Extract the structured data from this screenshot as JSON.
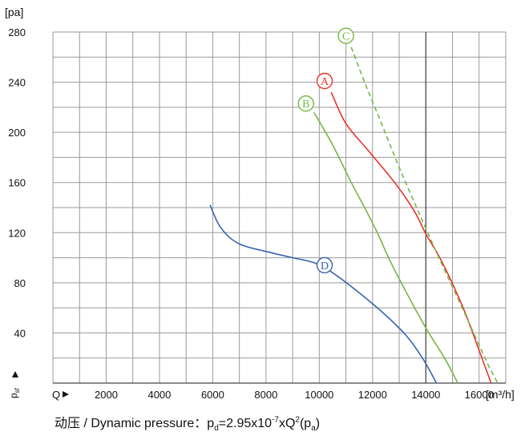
{
  "chart_data": {
    "type": "line",
    "y_unit": "[pa]",
    "x_unit": "[m³/h]",
    "x_axis_symbol": "Q",
    "y_axis_symbol": "p",
    "y_axis_symbol_sub": "sf",
    "xlim": [
      0,
      17000
    ],
    "ylim": [
      0,
      280
    ],
    "x_ticks": [
      2000,
      4000,
      6000,
      8000,
      10000,
      12000,
      14000,
      16000
    ],
    "y_ticks": [
      40,
      80,
      120,
      160,
      200,
      240,
      280
    ],
    "x_tick_labels": [
      "2000",
      "4000",
      "6000",
      "8000",
      "10000",
      "12000",
      "14000",
      "16000"
    ],
    "y_tick_labels": [
      "40",
      "80",
      "120",
      "160",
      "200",
      "240",
      "280"
    ],
    "grid": true,
    "series": [
      {
        "name": "A",
        "color": "#e8332a",
        "dash": false,
        "label_at": [
          10200,
          241
        ],
        "points": [
          [
            10450,
            232
          ],
          [
            11000,
            207
          ],
          [
            11900,
            184
          ],
          [
            12900,
            158
          ],
          [
            13600,
            136
          ],
          [
            14000,
            119
          ],
          [
            14600,
            97
          ],
          [
            15400,
            60
          ],
          [
            16000,
            26
          ],
          [
            16450,
            0
          ]
        ]
      },
      {
        "name": "B",
        "color": "#74b844",
        "dash": false,
        "label_at": [
          9500,
          223
        ],
        "points": [
          [
            9800,
            216
          ],
          [
            10500,
            190
          ],
          [
            11200,
            160
          ],
          [
            11700,
            140
          ],
          [
            12200,
            119
          ],
          [
            12600,
            100
          ],
          [
            13100,
            79
          ],
          [
            14000,
            44
          ],
          [
            14700,
            20
          ],
          [
            15200,
            0
          ]
        ]
      },
      {
        "name": "C",
        "color": "#74b844",
        "dash": true,
        "label_at": [
          11000,
          277
        ],
        "points": [
          [
            11200,
            268
          ],
          [
            11700,
            240
          ],
          [
            12300,
            209
          ],
          [
            13000,
            172
          ],
          [
            13800,
            133
          ],
          [
            14600,
            95
          ],
          [
            15300,
            63
          ],
          [
            15900,
            35
          ],
          [
            16350,
            14
          ],
          [
            16700,
            0
          ]
        ]
      },
      {
        "name": "D",
        "color": "#3a64b0",
        "dash": false,
        "label_at": [
          10200,
          94
        ],
        "points": [
          [
            5900,
            142
          ],
          [
            6300,
            124
          ],
          [
            7000,
            111
          ],
          [
            8200,
            104
          ],
          [
            9000,
            100
          ],
          [
            9800,
            96
          ],
          [
            10500,
            88
          ],
          [
            11500,
            72
          ],
          [
            12500,
            54
          ],
          [
            13300,
            37
          ],
          [
            13900,
            19
          ],
          [
            14400,
            0
          ]
        ]
      }
    ]
  },
  "caption": {
    "prefix": "动压 / Dynamic pressure：",
    "p1": "p",
    "p1_sub": "d",
    "mid": "=2.95x10",
    "exp": "-7",
    "mid2": "xQ",
    "exp2": "2",
    "open": "(p",
    "p2_sub": "a",
    "close": ")"
  }
}
